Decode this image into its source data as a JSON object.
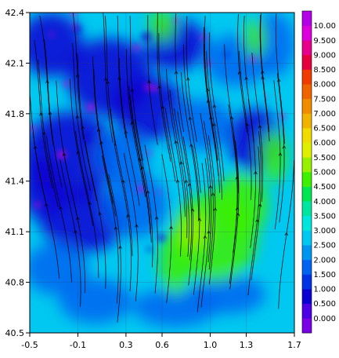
{
  "chart_data": {
    "type": "heatmap",
    "title": "",
    "xlabel": "",
    "ylabel": "",
    "xlim": [
      -0.5,
      1.7
    ],
    "ylim": [
      40.5,
      42.4
    ],
    "x_ticks": [
      "-0.5",
      "-0.1",
      "0.3",
      "0.6",
      "1.0",
      "1.3",
      "1.7"
    ],
    "y_ticks": [
      "40.5",
      "40.8",
      "41.1",
      "41.4",
      "41.8",
      "42.1",
      "42.4"
    ],
    "x_tick_values": [
      -0.5,
      -0.1,
      0.3,
      0.6,
      1.0,
      1.3,
      1.7
    ],
    "y_tick_values": [
      40.5,
      40.8,
      41.1,
      41.4,
      41.8,
      42.1,
      42.4
    ],
    "overlay": "streamlines",
    "grid": true,
    "colorbar": {
      "placement": "right",
      "levels": [
        "0.000",
        "0.500",
        "1.000",
        "1.500",
        "2.000",
        "2.500",
        "3.000",
        "3.500",
        "4.000",
        "4.500",
        "5.000",
        "5.500",
        "6.000",
        "6.500",
        "7.000",
        "7.500",
        "8.000",
        "8.500",
        "9.000",
        "9.500",
        "10.00"
      ],
      "colors": [
        "#7a00e6",
        "#4b00e6",
        "#0a00d2",
        "#0032e6",
        "#0064f0",
        "#0096f0",
        "#00c8f0",
        "#00e6dc",
        "#00e6a0",
        "#00e650",
        "#3cf000",
        "#96f000",
        "#dcf000",
        "#f0dc00",
        "#f0b400",
        "#f08c00",
        "#f06400",
        "#f03c00",
        "#e6003c",
        "#e6008c",
        "#dc00dc",
        "#b400e6"
      ]
    },
    "field_colors": {
      "background": "#00c8f0",
      "low": "#0a00d2",
      "mid": "#0064f0",
      "high": "#3cf000",
      "peak": "#96f000",
      "extreme": "#dc00dc"
    }
  }
}
